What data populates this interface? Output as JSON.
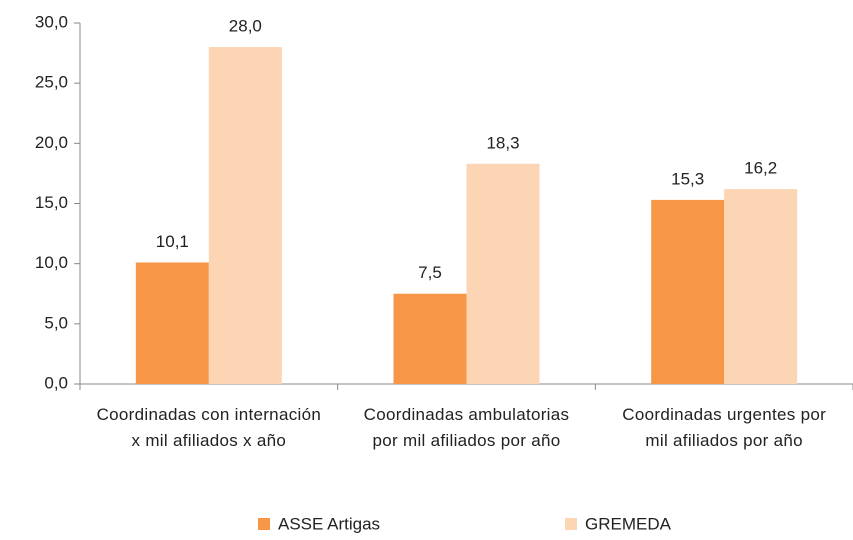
{
  "chart_data": {
    "type": "bar",
    "categories": [
      "Coordinadas con internación x mil afiliados x año",
      "Coordinadas ambulatorias por mil afiliados por año",
      "Coordinadas urgentes por mil afiliados por año"
    ],
    "series": [
      {
        "name": "ASSE Artigas",
        "color": "#f79646",
        "values": [
          10.1,
          7.5,
          15.3
        ],
        "value_labels": [
          "10,1",
          "7,5",
          "15,3"
        ]
      },
      {
        "name": "GREMEDA",
        "color": "#fcd5b5",
        "values": [
          28.0,
          18.3,
          16.2
        ],
        "value_labels": [
          "28,0",
          "18,3",
          "16,2"
        ]
      }
    ],
    "ylim": [
      0,
      30
    ],
    "yticks": [
      {
        "value": 0,
        "label": "0,0"
      },
      {
        "value": 5,
        "label": "5,0"
      },
      {
        "value": 10,
        "label": "10,0"
      },
      {
        "value": 15,
        "label": "15,0"
      },
      {
        "value": 20,
        "label": "20,0"
      },
      {
        "value": 25,
        "label": "25,0"
      },
      {
        "value": 30,
        "label": "30,0"
      }
    ],
    "grid": false,
    "legend": "bottom"
  }
}
